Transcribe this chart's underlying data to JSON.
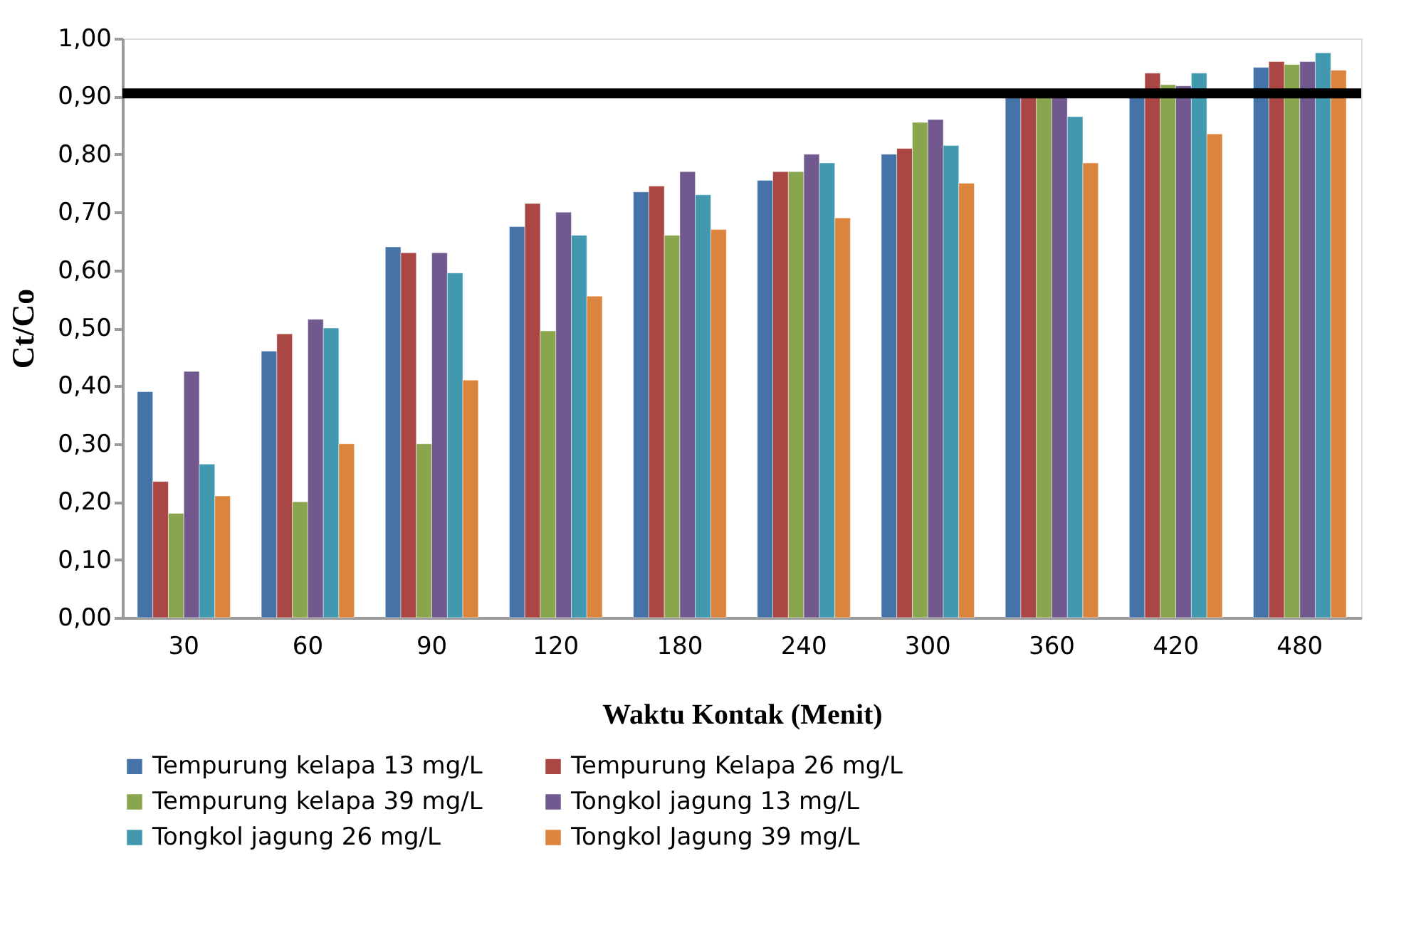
{
  "chart_data": {
    "type": "bar",
    "xlabel": "Waktu Kontak (Menit)",
    "ylabel": "Ct/Co",
    "categories": [
      "30",
      "60",
      "90",
      "120",
      "180",
      "240",
      "300",
      "360",
      "420",
      "480"
    ],
    "series": [
      {
        "name": "Tempurung kelapa 13 mg/L",
        "color": "#4572a7",
        "values": [
          0.39,
          0.46,
          0.64,
          0.675,
          0.735,
          0.755,
          0.8,
          0.9,
          0.9,
          0.95
        ]
      },
      {
        "name": "Tempurung Kelapa 26 mg/L",
        "color": "#aa4643",
        "values": [
          0.235,
          0.49,
          0.63,
          0.715,
          0.745,
          0.77,
          0.81,
          0.9,
          0.94,
          0.96
        ]
      },
      {
        "name": "Tempurung kelapa 39 mg/L",
        "color": "#89a54e",
        "values": [
          0.18,
          0.2,
          0.3,
          0.495,
          0.66,
          0.77,
          0.855,
          0.9,
          0.92,
          0.955
        ]
      },
      {
        "name": "Tongkol jagung 13 mg/L",
        "color": "#71588f",
        "values": [
          0.425,
          0.515,
          0.63,
          0.7,
          0.77,
          0.8,
          0.86,
          0.9,
          0.918,
          0.96
        ]
      },
      {
        "name": "Tongkol jagung 26 mg/L",
        "color": "#4198af",
        "values": [
          0.265,
          0.5,
          0.595,
          0.66,
          0.73,
          0.785,
          0.815,
          0.865,
          0.94,
          0.975
        ]
      },
      {
        "name": "Tongkol Jagung 39 mg/L",
        "color": "#db843d",
        "values": [
          0.21,
          0.3,
          0.41,
          0.555,
          0.67,
          0.69,
          0.75,
          0.785,
          0.835,
          0.945
        ]
      }
    ],
    "ylim": [
      0,
      1
    ],
    "yticks": [
      {
        "value": 0,
        "label": "0,00"
      },
      {
        "value": 0.1,
        "label": "0,10"
      },
      {
        "value": 0.2,
        "label": "0,20"
      },
      {
        "value": 0.3,
        "label": "0,30"
      },
      {
        "value": 0.4,
        "label": "0,40"
      },
      {
        "value": 0.5,
        "label": "0,50"
      },
      {
        "value": 0.6,
        "label": "0,60"
      },
      {
        "value": 0.7,
        "label": "0,70"
      },
      {
        "value": 0.8,
        "label": "0,80"
      },
      {
        "value": 0.9,
        "label": "0,90"
      },
      {
        "value": 1,
        "label": "1,00"
      }
    ],
    "ref_lines": [
      {
        "axis": "y",
        "value": 0.905,
        "color": "#000000"
      }
    ],
    "grid": false,
    "legend": "bottom"
  }
}
